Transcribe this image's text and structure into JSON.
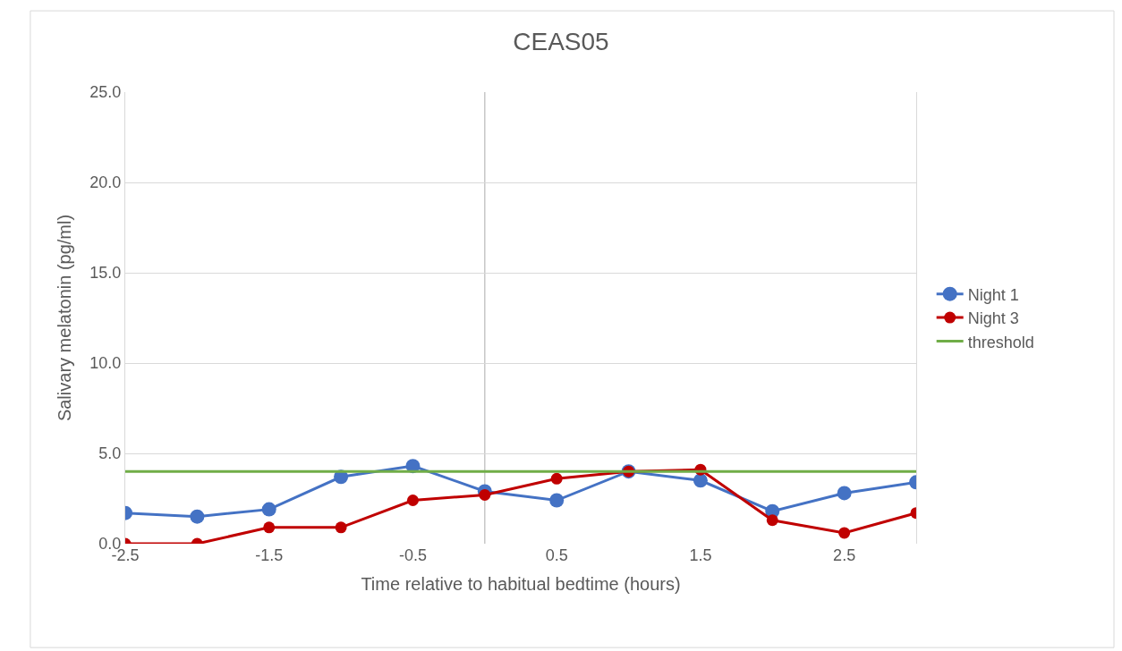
{
  "chart_data": {
    "type": "line",
    "title": "CEAS05",
    "xlabel": "Time relative to habitual bedtime (hours)",
    "ylabel": "Salivary melatonin (pg/ml)",
    "x": [
      -2.5,
      -2,
      -1.5,
      -1,
      -0.5,
      0,
      0.5,
      1,
      1.5,
      2,
      2.5,
      3
    ],
    "series": [
      {
        "name": "Night 1",
        "color": "#4472c4",
        "marker": "circle",
        "values": [
          1.7,
          1.5,
          1.9,
          3.7,
          4.3,
          2.9,
          2.4,
          4.0,
          3.5,
          1.8,
          2.8,
          3.4
        ]
      },
      {
        "name": "Night 3",
        "color": "#c00000",
        "marker": "circle",
        "values": [
          0,
          0,
          0.9,
          0.9,
          2.4,
          2.7,
          3.6,
          4.0,
          4.1,
          1.3,
          0.6,
          1.7
        ]
      },
      {
        "name": "threshold",
        "color": "#70ad47",
        "marker": "none",
        "values": [
          4,
          4,
          4,
          4,
          4,
          4,
          4,
          4,
          4,
          4,
          4,
          4
        ]
      }
    ],
    "xlim": [
      -2.5,
      3
    ],
    "xticks": [
      -2.5,
      -1.5,
      -0.5,
      0.5,
      1.5,
      2.5
    ],
    "ylim": [
      0,
      25
    ],
    "yticks": [
      {
        "value": 0,
        "label": "0.0"
      },
      {
        "value": 5,
        "label": "5.0"
      },
      {
        "value": 10,
        "label": "10.0"
      },
      {
        "value": 15,
        "label": "15.0"
      },
      {
        "value": 20,
        "label": "20.0"
      },
      {
        "value": 25,
        "label": "25.0"
      }
    ],
    "ref_lines": [
      {
        "axis": "x",
        "value": 0,
        "color": "#bfbfbf"
      }
    ],
    "grid": "y",
    "legend": "right"
  }
}
